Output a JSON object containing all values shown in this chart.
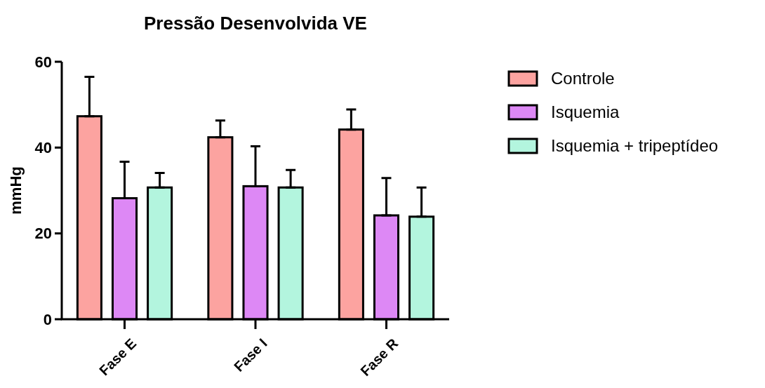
{
  "chart_data": {
    "type": "bar",
    "title": "Pressão Desenvolvida VE",
    "ylabel": "mmHg",
    "categories": [
      "Fase E",
      "Fase I",
      "Fase R"
    ],
    "series": [
      {
        "name": "Controle",
        "color": "#fca3a0",
        "values": [
          47.3,
          42.4,
          44.2
        ],
        "errors": [
          [
            47.3,
            56.5
          ],
          [
            42.4,
            46.3
          ],
          [
            44.2,
            48.9
          ]
        ]
      },
      {
        "name": "Isquemia",
        "color": "#dd88f5",
        "values": [
          28.2,
          31.0,
          24.2
        ],
        "errors": [
          [
            28.2,
            36.7
          ],
          [
            31.0,
            40.3
          ],
          [
            24.2,
            32.9
          ]
        ]
      },
      {
        "name": "Isquemia + tripeptídeo",
        "color": "#b3f5de",
        "values": [
          30.7,
          30.7,
          23.9
        ],
        "errors": [
          [
            30.7,
            34.1
          ],
          [
            30.7,
            34.8
          ],
          [
            23.9,
            30.7
          ]
        ]
      }
    ],
    "ylim": [
      0,
      60
    ],
    "yticks": [
      0,
      20,
      40,
      60
    ],
    "grid": false,
    "legend": "right"
  }
}
